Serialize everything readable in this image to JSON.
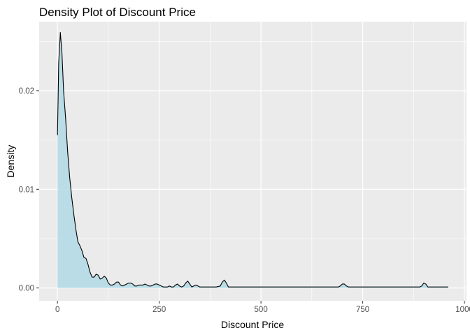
{
  "chart_data": {
    "type": "area",
    "title": "Density Plot of Discount Price",
    "xlabel": "Discount Price",
    "ylabel": "Density",
    "xlim": [
      -45,
      1005
    ],
    "ylim": [
      -0.0013,
      0.027
    ],
    "x_ticks": [
      0,
      250,
      500,
      750,
      1000
    ],
    "x_tick_labels": [
      "0",
      "250",
      "500",
      "750",
      "1000"
    ],
    "y_ticks": [
      0.0,
      0.01,
      0.02
    ],
    "y_tick_labels": [
      "0.00",
      "0.01",
      "0.02"
    ],
    "grid": true,
    "legend": "none",
    "fill_color": "#add8e6",
    "line_color": "#000000",
    "panel_color": "#ebebeb",
    "series": [
      {
        "x": [
          0,
          3,
          7,
          11,
          15,
          20,
          25,
          30,
          35,
          40,
          45,
          50,
          55,
          60,
          65,
          70,
          75,
          80,
          85,
          90,
          95,
          100,
          105,
          110,
          115,
          120,
          125,
          130,
          135,
          140,
          145,
          150,
          155,
          160,
          165,
          170,
          175,
          180,
          185,
          190,
          195,
          200,
          205,
          210,
          215,
          220,
          225,
          230,
          235,
          240,
          245,
          250,
          255,
          260,
          265,
          270,
          275,
          280,
          285,
          290,
          295,
          300,
          305,
          310,
          315,
          320,
          325,
          330,
          335,
          340,
          345,
          350,
          355,
          360,
          370,
          380,
          390,
          400,
          405,
          410,
          415,
          420,
          425,
          430,
          450,
          500,
          550,
          600,
          650,
          690,
          695,
          700,
          705,
          710,
          715,
          720,
          730,
          800,
          880,
          890,
          895,
          900,
          905,
          910,
          915,
          920,
          940,
          960
        ],
        "y": [
          0.0155,
          0.0228,
          0.0259,
          0.0238,
          0.02,
          0.0172,
          0.0138,
          0.0112,
          0.0092,
          0.0075,
          0.006,
          0.0047,
          0.0043,
          0.0038,
          0.0031,
          0.003,
          0.0024,
          0.0016,
          0.0011,
          0.0011,
          0.0014,
          0.0013,
          0.0009,
          0.001,
          0.0012,
          0.001,
          0.0005,
          0.0003,
          0.0003,
          0.0004,
          0.0006,
          0.0006,
          0.0003,
          0.0002,
          0.0003,
          0.0004,
          0.0005,
          0.0005,
          0.0004,
          0.0002,
          0.0002,
          0.0003,
          0.0003,
          0.0003,
          0.0004,
          0.0003,
          0.0002,
          0.0002,
          0.0003,
          0.0004,
          0.0004,
          0.0003,
          0.0002,
          0.0001,
          0.0001,
          0.0001,
          0.0002,
          0.0001,
          0.0001,
          0.0003,
          0.0004,
          0.0002,
          0.0001,
          0.0002,
          0.0005,
          0.0007,
          0.0004,
          0.0001,
          0.0002,
          0.0003,
          0.0002,
          0.0001,
          0.0001,
          0.0001,
          0.0001,
          0.0001,
          0.0001,
          0.0002,
          0.0006,
          0.0008,
          0.0005,
          0.0001,
          0.0001,
          0.0001,
          0.0001,
          0.0001,
          0.0001,
          0.0001,
          0.0001,
          0.0001,
          0.0002,
          0.0004,
          0.0004,
          0.0002,
          0.0001,
          0.0001,
          0.0001,
          0.0001,
          0.0001,
          0.0001,
          0.0002,
          0.0005,
          0.0004,
          0.0001,
          0.0001,
          0.0001,
          0.0001,
          0.0001
        ]
      }
    ]
  }
}
